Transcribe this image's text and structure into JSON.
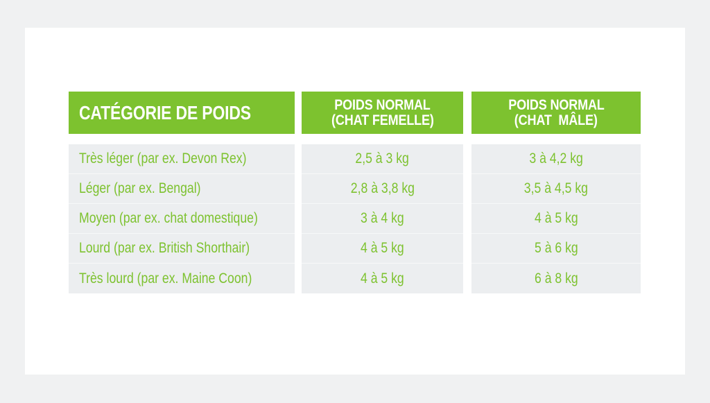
{
  "colors": {
    "accent_green": "#7dc22f",
    "row_background": "#eceef0",
    "card_background": "#ffffff",
    "page_background": "#f0f1f2"
  },
  "table": {
    "headers": {
      "category": "CATÉGORIE DE POIDS",
      "female_line1": "POIDS NORMAL",
      "female_line2": "(CHAT FEMELLE)",
      "male_line1": "POIDS NORMAL",
      "male_line2": "(CHAT  MÂLE)"
    },
    "rows": [
      {
        "category": "Très léger (par ex. Devon Rex)",
        "female": "2,5 à 3 kg",
        "male": "3 à 4,2 kg"
      },
      {
        "category": "Léger (par ex. Bengal)",
        "female": "2,8 à 3,8 kg",
        "male": "3,5 à 4,5 kg"
      },
      {
        "category": "Moyen (par ex. chat domestique)",
        "female": "3 à 4 kg",
        "male": "4 à 5 kg"
      },
      {
        "category": "Lourd (par ex. British Shorthair)",
        "female": "4 à 5 kg",
        "male": "5 à 6 kg"
      },
      {
        "category": "Très lourd (par ex. Maine Coon)",
        "female": "4 à 5 kg",
        "male": "6 à 8 kg"
      }
    ]
  }
}
